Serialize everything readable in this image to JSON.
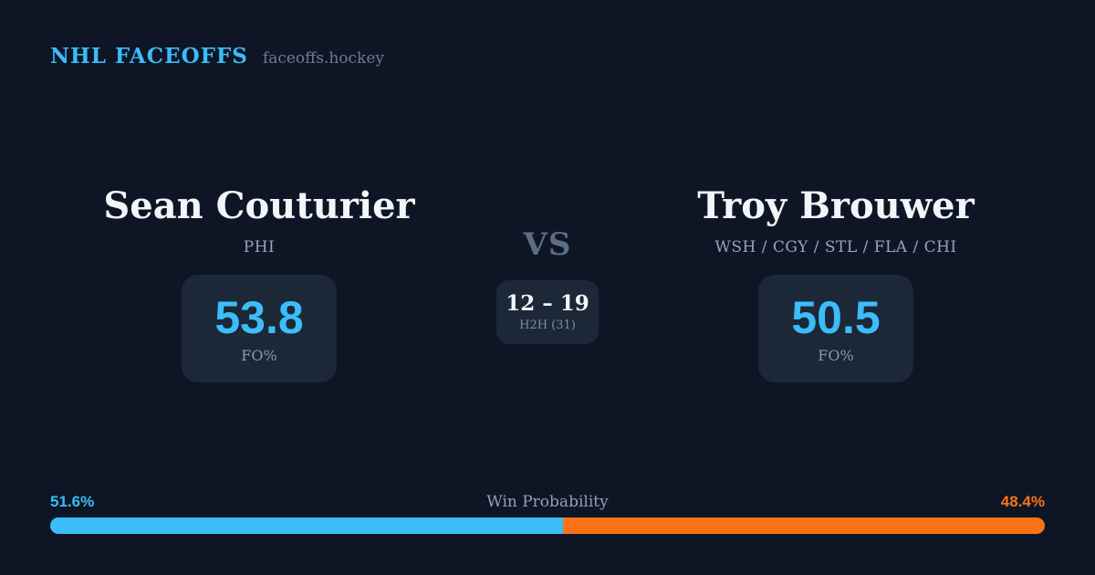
{
  "header": {
    "brand": "NHL FACEOFFS",
    "site": "faceoffs.hockey"
  },
  "matchup": {
    "vs_label": "VS",
    "player_left": {
      "name": "Sean Couturier",
      "teams": "PHI",
      "stat_value": "53.8",
      "stat_label": "FO%"
    },
    "player_right": {
      "name": "Troy Brouwer",
      "teams": "WSH / CGY / STL / FLA / CHI",
      "stat_value": "50.5",
      "stat_label": "FO%"
    },
    "head_to_head": {
      "score": "12 – 19",
      "label": "H2H (31)"
    }
  },
  "win_probability": {
    "title": "Win Probability",
    "left_label": "51.6%",
    "right_label": "48.4%",
    "left_value": 51.6,
    "right_value": 48.4
  },
  "colors": {
    "background": "#0e1626",
    "card_background": "#1c2737",
    "accent_blue": "#3bbdf8",
    "accent_orange": "#f97316",
    "text_primary": "#f3f5f8",
    "text_muted": "#97a5b8"
  }
}
